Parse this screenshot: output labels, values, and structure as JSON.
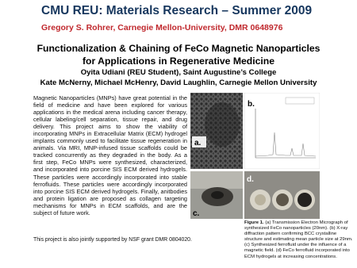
{
  "header": {
    "title": "CMU REU: Materials Research – Summer 2009",
    "subtitle": "Gregory S. Rohrer, Carnegie Mellon-University,  DMR 0648976"
  },
  "poster": {
    "title_lines": [
      "Functionalization & Chaining of FeCo Magnetic Nanoparticles",
      "for Applications in Regenerative Medicine"
    ],
    "authors": [
      "Oyita Udiani (REU Student), Saint Augustine’s College",
      "Kate McNerny, Michael McHenry, David Laughlin, Carnegie Mellon University"
    ]
  },
  "body": {
    "paragraph": "Magnetic Nanoparticles (MNPs) have great potential in the field of medicine and have been explored for various applications in the medical arena including cancer therapy, cellular labeling/cell separation, tissue repair, and drug delivery.  This project aims to show the viability of incorporating MNPs in Extracellular Matrix (ECM) hydrogel implants commonly used to facilitate tissue regeneration in animals.  Via MRI, MNP-infused tissue scaffolds could be tracked concurrently as they degraded in the body.  As a first step, FeCo MNPs were synthesized, characterized, and incorporated into porcine SIS ECM derived hydrogels.  These particles were accordingly incorporated into stable ferrofluids.  These particles were accordingly incorporated into porcine SIS ECM derived hydrogels.  Finally, anitbodies and protein ligation are proposed as collagen targeting mechanisms for MNPs in ECM scaffolds, and are the subject of future work.",
    "funding": "This project is also jointly supported by NSF grant DMR 0804020."
  },
  "figure": {
    "panel_labels": [
      "a.",
      "b.",
      "c.",
      "d."
    ],
    "caption_label": "Figure 1.",
    "caption": "(a) Transmission Electron Micrograph of synthesized FeCo nanoparticles (20nm). (b) X-ray diffraction pattern confirming BCC crystalline structure and estimating mean particle size at 29nm. (c) Synthesized ferrofluid under the influence of a magnetic field. (d) FeCo ferrofluid incorporated into ECM hydrogels at increasing concentrations."
  }
}
